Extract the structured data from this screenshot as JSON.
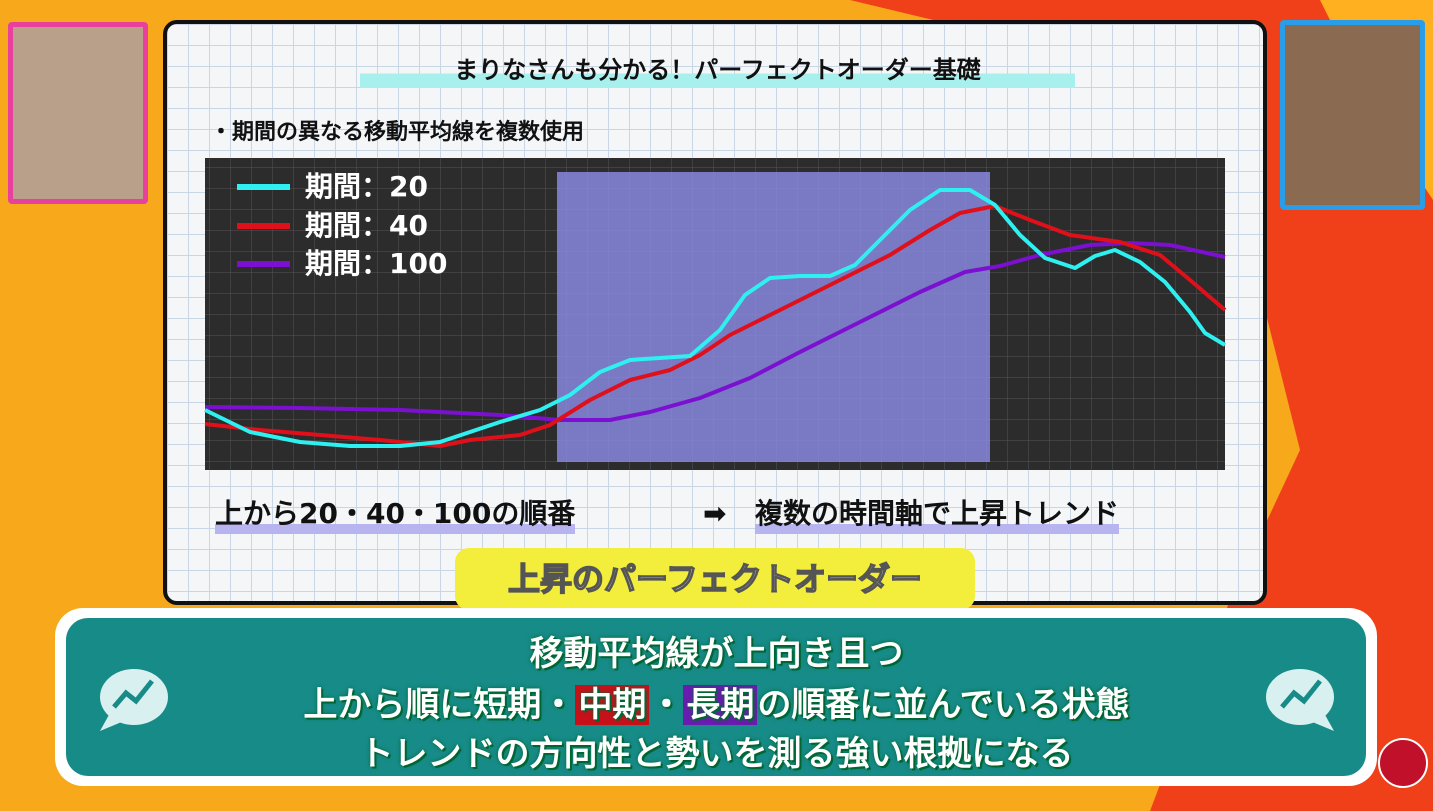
{
  "panel": {
    "title": "まりなさんも分かる！パーフェクトオーダー基礎",
    "subtitle": "・期間の異なる移動平均線を複数使用",
    "legend": [
      "期間：20",
      "期間：40",
      "期間：100"
    ],
    "caption_left": "上から20・40・100の順番",
    "caption_arrow": "➡",
    "caption_right": "複数の時間軸で上昇トレンド",
    "tag": "上昇のパーフェクトオーダー"
  },
  "subtitle_box": {
    "line1": "移動平均線が上向き且つ",
    "line2": [
      "上から順に短期・",
      "中期",
      "・",
      "長期",
      "の順番に並んでいる状態"
    ],
    "line3": "トレンドの方向性と勢いを測る強い根拠になる"
  }
}
